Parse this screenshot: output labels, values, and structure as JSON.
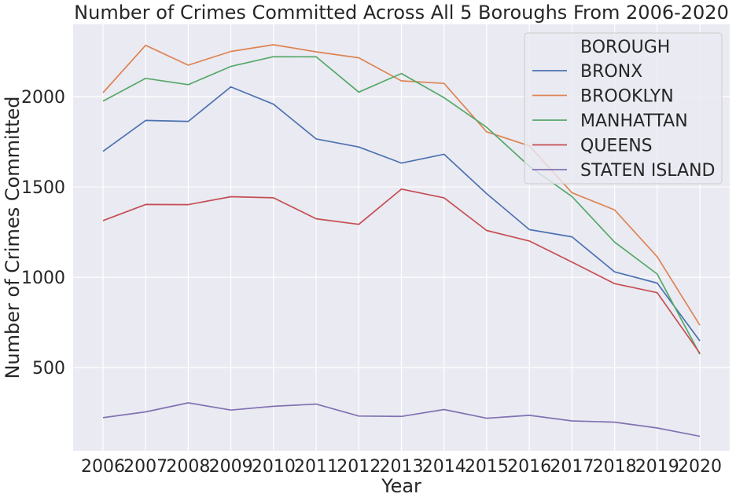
{
  "chart_data": {
    "type": "line",
    "title": "Number of Crimes Committed Across All 5 Boroughs From 2006-2020",
    "xlabel": "Year",
    "ylabel": "Number of Crimes Committed",
    "x": [
      2006,
      2007,
      2008,
      2009,
      2010,
      2011,
      2012,
      2013,
      2014,
      2015,
      2016,
      2017,
      2018,
      2019,
      2020
    ],
    "x_tick_labels": [
      "2006",
      "2007",
      "2008",
      "2009",
      "2010",
      "2011",
      "2012",
      "2013",
      "2014",
      "2015",
      "2016",
      "2017",
      "2018",
      "2019",
      "2020"
    ],
    "y_ticks": [
      500,
      1000,
      1500,
      2000
    ],
    "ylim": [
      40,
      2400
    ],
    "grid": true,
    "legend_title": "BOROUGH",
    "legend_position": "top-right",
    "series": [
      {
        "name": "BRONX",
        "color": "#4c72b0",
        "values": [
          1697,
          1868,
          1863,
          2054,
          1958,
          1766,
          1721,
          1632,
          1681,
          1463,
          1264,
          1224,
          1030,
          968,
          648
        ]
      },
      {
        "name": "BROOKLYN",
        "color": "#dd8452",
        "values": [
          2022,
          2284,
          2174,
          2250,
          2287,
          2248,
          2215,
          2087,
          2073,
          1805,
          1727,
          1468,
          1373,
          1114,
          735
        ]
      },
      {
        "name": "MANHATTAN",
        "color": "#55a868",
        "values": [
          1975,
          2101,
          2066,
          2167,
          2221,
          2220,
          2025,
          2128,
          1994,
          1830,
          1614,
          1447,
          1195,
          1018,
          574
        ]
      },
      {
        "name": "QUEENS",
        "color": "#c44e52",
        "values": [
          1314,
          1403,
          1402,
          1446,
          1440,
          1324,
          1293,
          1488,
          1440,
          1259,
          1201,
          1084,
          965,
          915,
          580
        ]
      },
      {
        "name": "STATEN ISLAND",
        "color": "#8172b3",
        "values": [
          223,
          255,
          305,
          265,
          286,
          298,
          232,
          230,
          268,
          220,
          236,
          205,
          198,
          166,
          120
        ]
      }
    ]
  }
}
